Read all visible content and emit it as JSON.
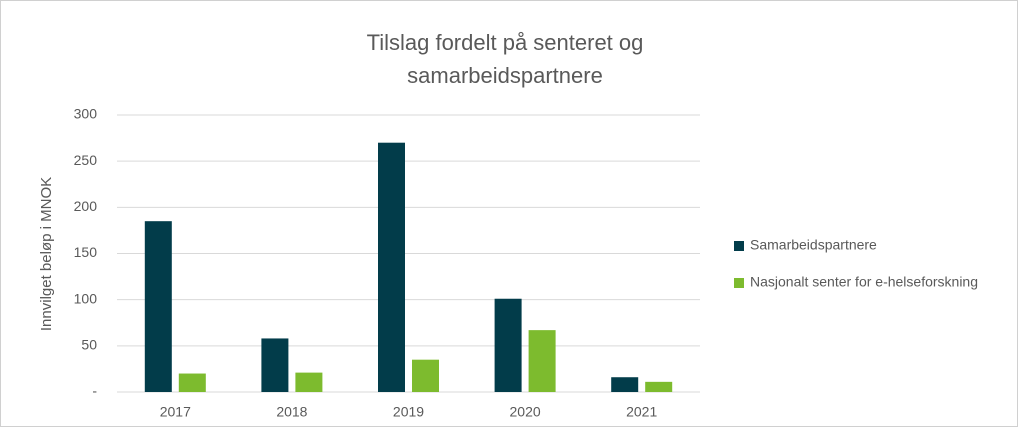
{
  "chart_data": {
    "type": "bar",
    "title": "Tilslag fordelt på senteret og samarbeidspartnere",
    "y_label": "Innvilget beløp i MNOK",
    "categories": [
      "2017",
      "2018",
      "2019",
      "2020",
      "2021"
    ],
    "series": [
      {
        "name": "Samarbeidspartnere",
        "color": "#023c4a",
        "values": [
          185,
          58,
          270,
          101,
          16
        ]
      },
      {
        "name": "Nasjonalt senter for e-helseforskning",
        "color": "#7dbb2e",
        "values": [
          20,
          21,
          35,
          67,
          11
        ]
      }
    ],
    "ylim": [
      0,
      300
    ],
    "yticks": [
      {
        "value": 0,
        "label": "-"
      },
      50,
      100,
      150,
      200,
      250,
      300
    ],
    "grid": true,
    "legend": "right"
  }
}
